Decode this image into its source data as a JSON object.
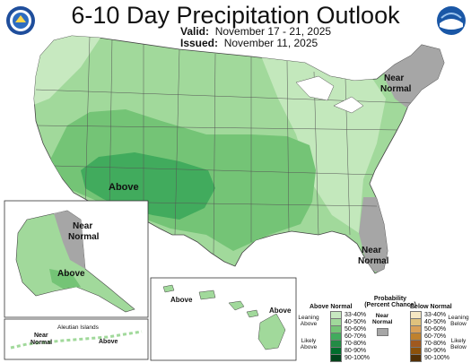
{
  "title": "6-10 Day Precipitation Outlook",
  "valid": {
    "label": "Valid:",
    "value": "November 17 - 21, 2025"
  },
  "issued": {
    "label": "Issued:",
    "value": "November 11, 2025"
  },
  "logos": {
    "left": "doc-seal-icon",
    "right": "noaa-logo-icon"
  },
  "map_labels": {
    "above_main": "Above",
    "near_normal_ne": [
      "Near",
      "Normal"
    ],
    "near_normal_se": [
      "Near",
      "Normal"
    ],
    "alaska_near": [
      "Near",
      "Normal"
    ],
    "alaska_above": "Above",
    "aleutian_title": "Aleutian Islands",
    "aleutian_near": [
      "Near",
      "Normal"
    ],
    "aleutian_above": "Above",
    "hawaii_above_left": "Above",
    "hawaii_above_right": "Above"
  },
  "legend": {
    "title": [
      "Probability",
      "(Percent Chance)"
    ],
    "above_header": "Above Normal",
    "below_header": "Below Normal",
    "near_label": [
      "Near",
      "Normal"
    ],
    "leaning_above": [
      "Leaning",
      "Above"
    ],
    "likely_above": [
      "Likely",
      "Above"
    ],
    "leaning_below": [
      "Leaning",
      "Below"
    ],
    "likely_below": [
      "Likely",
      "Below"
    ],
    "ranges": [
      "33-40%",
      "40-50%",
      "50-60%",
      "60-70%",
      "70-80%",
      "80-90%",
      "90-100%"
    ],
    "above_colors": [
      "#c7e9c0",
      "#a1d99b",
      "#74c476",
      "#41ab5d",
      "#238b45",
      "#006d2c",
      "#00441b"
    ],
    "below_colors": [
      "#f6e8c3",
      "#dfc27d",
      "#d9a057",
      "#bf812d",
      "#a0591f",
      "#8c510a",
      "#543005"
    ],
    "near_color": "#a6a6a6"
  }
}
